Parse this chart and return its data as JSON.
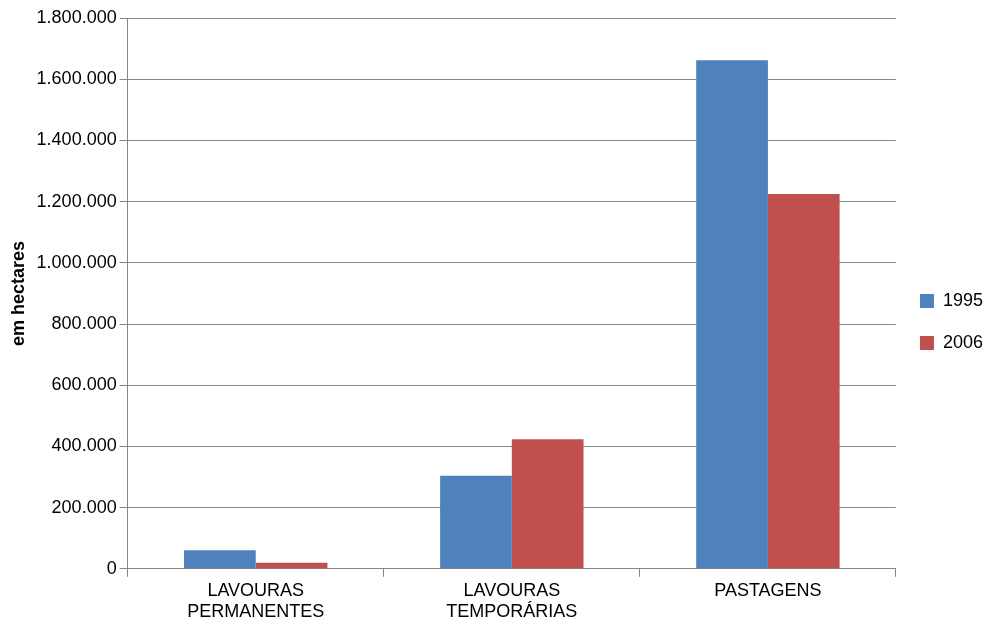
{
  "chart_data": {
    "type": "bar",
    "ylabel": "em hectares",
    "categories": [
      "LAVOURAS PERMANENTES",
      "LAVOURAS TEMPORÁRIAS",
      "PASTAGENS"
    ],
    "series": [
      {
        "name": "1995",
        "color": "#4f81bd",
        "values": [
          61000,
          304000,
          1662000
        ]
      },
      {
        "name": "2006",
        "color": "#c0504d",
        "values": [
          20000,
          423000,
          1225000
        ]
      }
    ],
    "ylim": [
      0,
      1800000
    ],
    "yticks": [
      {
        "value": 0,
        "label": "0"
      },
      {
        "value": 200000,
        "label": "200.000"
      },
      {
        "value": 400000,
        "label": "400.000"
      },
      {
        "value": 600000,
        "label": "600.000"
      },
      {
        "value": 800000,
        "label": "800.000"
      },
      {
        "value": 1000000,
        "label": "1.000.000"
      },
      {
        "value": 1200000,
        "label": "1.200.000"
      },
      {
        "value": 1400000,
        "label": "1.400.000"
      },
      {
        "value": 1600000,
        "label": "1.600.000"
      },
      {
        "value": 1800000,
        "label": "1.800.000"
      }
    ],
    "grid": "y",
    "legend": "right"
  }
}
